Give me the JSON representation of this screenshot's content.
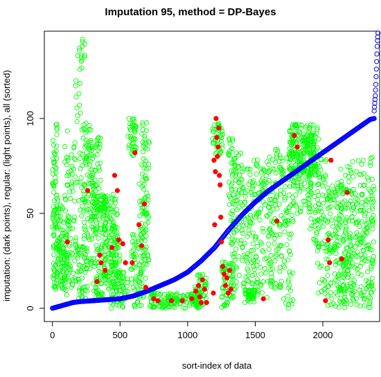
{
  "chart_data": {
    "type": "scatter",
    "title": "Imputation 95,   method = DP-Bayes",
    "xlabel": "sort-index of data",
    "ylabel": "imputation: (dark points),  regular: (light points),  all (sorted)",
    "xlim": [
      -60,
      2420
    ],
    "ylim": [
      -7,
      146
    ],
    "x_ticks": [
      0,
      500,
      1000,
      1500,
      2000
    ],
    "y_ticks": [
      0,
      50,
      100
    ],
    "grid": false,
    "legend": "none",
    "colors": {
      "regular": "#00ff00",
      "imputation": "#ff0000",
      "sorted": "#0000ff"
    },
    "series": [
      {
        "id": "regular",
        "marker": "open-circle",
        "clusters": [
          {
            "x": [
              0,
              35
            ],
            "y": [
              40,
              98
            ],
            "n": 60
          },
          {
            "x": [
              5,
              100
            ],
            "y": [
              10,
              40
            ],
            "n": 110
          },
          {
            "x": [
              35,
              100
            ],
            "y": [
              40,
              60
            ],
            "n": 20
          },
          {
            "x": [
              90,
              170
            ],
            "y": [
              55,
              95
            ],
            "n": 30
          },
          {
            "x": [
              100,
              175
            ],
            "y": [
              5,
              50
            ],
            "n": 60
          },
          {
            "x": [
              170,
              220
            ],
            "y": [
              40,
              140
            ],
            "n": 30
          },
          {
            "x": [
              200,
              240
            ],
            "y": [
              130,
              146
            ],
            "n": 8
          },
          {
            "x": [
              175,
              260
            ],
            "y": [
              5,
              35
            ],
            "n": 40
          },
          {
            "x": [
              220,
              300
            ],
            "y": [
              20,
              98
            ],
            "n": 100
          },
          {
            "x": [
              280,
              360
            ],
            "y": [
              40,
              90
            ],
            "n": 70
          },
          {
            "x": [
              300,
              400
            ],
            "y": [
              5,
              60
            ],
            "n": 110
          },
          {
            "x": [
              380,
              480
            ],
            "y": [
              10,
              60
            ],
            "n": 120
          },
          {
            "x": [
              430,
              500
            ],
            "y": [
              0,
              40
            ],
            "n": 60
          },
          {
            "x": [
              470,
              560
            ],
            "y": [
              0,
              20
            ],
            "n": 40
          },
          {
            "x": [
              560,
              620
            ],
            "y": [
              80,
              100
            ],
            "n": 40
          },
          {
            "x": [
              580,
              660
            ],
            "y": [
              0,
              40
            ],
            "n": 50
          },
          {
            "x": [
              640,
              700
            ],
            "y": [
              0,
              70
            ],
            "n": 50
          },
          {
            "x": [
              660,
              720
            ],
            "y": [
              20,
              98
            ],
            "n": 60
          },
          {
            "x": [
              720,
              760
            ],
            "y": [
              0,
              10
            ],
            "n": 30
          },
          {
            "x": [
              780,
              1100
            ],
            "y": [
              0,
              8
            ],
            "n": 120
          },
          {
            "x": [
              1050,
              1140
            ],
            "y": [
              0,
              18
            ],
            "n": 50
          },
          {
            "x": [
              1180,
              1260
            ],
            "y": [
              80,
              100
            ],
            "n": 40
          },
          {
            "x": [
              1250,
              1300
            ],
            "y": [
              0,
              25
            ],
            "n": 40
          },
          {
            "x": [
              1300,
              1340
            ],
            "y": [
              5,
              90
            ],
            "n": 70
          },
          {
            "x": [
              1340,
              1400
            ],
            "y": [
              10,
              85
            ],
            "n": 60
          },
          {
            "x": [
              1400,
              1480
            ],
            "y": [
              5,
              75
            ],
            "n": 70
          },
          {
            "x": [
              1420,
              1500
            ],
            "y": [
              3,
              10
            ],
            "n": 40
          },
          {
            "x": [
              1480,
              1620
            ],
            "y": [
              5,
              80
            ],
            "n": 120
          },
          {
            "x": [
              1600,
              1700
            ],
            "y": [
              10,
              85
            ],
            "n": 80
          },
          {
            "x": [
              1680,
              1780
            ],
            "y": [
              0,
              80
            ],
            "n": 70
          },
          {
            "x": [
              1750,
              1960
            ],
            "y": [
              70,
              97
            ],
            "n": 220
          },
          {
            "x": [
              1780,
              1920
            ],
            "y": [
              50,
              75
            ],
            "n": 60
          },
          {
            "x": [
              1900,
              1980
            ],
            "y": [
              30,
              95
            ],
            "n": 50
          },
          {
            "x": [
              1960,
              2040
            ],
            "y": [
              5,
              80
            ],
            "n": 60
          },
          {
            "x": [
              2030,
              2380
            ],
            "y": [
              0,
              65
            ],
            "n": 380
          },
          {
            "x": [
              2100,
              2370
            ],
            "y": [
              60,
              80
            ],
            "n": 30
          }
        ]
      },
      {
        "id": "imputation",
        "marker": "filled-circle",
        "points": [
          [
            110,
            35
          ],
          [
            260,
            62
          ],
          [
            330,
            14
          ],
          [
            350,
            28
          ],
          [
            360,
            24
          ],
          [
            390,
            20
          ],
          [
            440,
            32
          ],
          [
            460,
            70
          ],
          [
            480,
            62
          ],
          [
            490,
            36
          ],
          [
            520,
            34
          ],
          [
            540,
            24
          ],
          [
            590,
            24
          ],
          [
            610,
            82
          ],
          [
            640,
            44
          ],
          [
            660,
            33
          ],
          [
            680,
            55
          ],
          [
            690,
            11
          ],
          [
            750,
            5
          ],
          [
            780,
            4
          ],
          [
            880,
            4
          ],
          [
            960,
            4
          ],
          [
            1030,
            5
          ],
          [
            1060,
            9
          ],
          [
            1080,
            12
          ],
          [
            1090,
            6
          ],
          [
            1100,
            3
          ],
          [
            1110,
            15
          ],
          [
            1125,
            10
          ],
          [
            1140,
            3
          ],
          [
            1190,
            8
          ],
          [
            1195,
            78
          ],
          [
            1200,
            44
          ],
          [
            1205,
            72
          ],
          [
            1210,
            100
          ],
          [
            1215,
            90
          ],
          [
            1220,
            80
          ],
          [
            1225,
            85
          ],
          [
            1230,
            95
          ],
          [
            1235,
            70
          ],
          [
            1240,
            65
          ],
          [
            1245,
            48
          ],
          [
            1250,
            35
          ],
          [
            1260,
            22
          ],
          [
            1270,
            18
          ],
          [
            1280,
            12
          ],
          [
            1290,
            16
          ],
          [
            1300,
            8
          ],
          [
            1310,
            20
          ],
          [
            1320,
            10
          ],
          [
            1560,
            5
          ],
          [
            1660,
            46
          ],
          [
            1790,
            91
          ],
          [
            1810,
            85
          ],
          [
            2020,
            4
          ],
          [
            2040,
            36
          ],
          [
            2060,
            78
          ],
          [
            2050,
            24
          ],
          [
            2140,
            26
          ],
          [
            2180,
            61
          ]
        ]
      },
      {
        "id": "sorted",
        "marker": "open-circle",
        "curve": [
          [
            0,
            0
          ],
          [
            50,
            1
          ],
          [
            100,
            2
          ],
          [
            150,
            3
          ],
          [
            200,
            3.5
          ],
          [
            300,
            4
          ],
          [
            400,
            4.5
          ],
          [
            500,
            5
          ],
          [
            600,
            6.5
          ],
          [
            700,
            9
          ],
          [
            800,
            12
          ],
          [
            900,
            15
          ],
          [
            1000,
            19
          ],
          [
            1100,
            25
          ],
          [
            1200,
            32
          ],
          [
            1300,
            41
          ],
          [
            1400,
            49
          ],
          [
            1500,
            56
          ],
          [
            1600,
            62
          ],
          [
            1700,
            67
          ],
          [
            1800,
            72
          ],
          [
            1900,
            77
          ],
          [
            2000,
            82
          ],
          [
            2100,
            87
          ],
          [
            2200,
            92
          ],
          [
            2300,
            97
          ],
          [
            2350,
            99.5
          ],
          [
            2380,
            100
          ]
        ],
        "n": 480,
        "outliers": [
          [
            2380,
            104
          ],
          [
            2382,
            106
          ],
          [
            2384,
            108
          ],
          [
            2386,
            110
          ],
          [
            2388,
            112
          ],
          [
            2390,
            115
          ],
          [
            2392,
            118
          ],
          [
            2394,
            122
          ],
          [
            2396,
            126
          ],
          [
            2398,
            130
          ],
          [
            2400,
            134
          ],
          [
            2402,
            138
          ],
          [
            2404,
            141
          ],
          [
            2406,
            143
          ],
          [
            2408,
            145
          ]
        ]
      }
    ]
  }
}
